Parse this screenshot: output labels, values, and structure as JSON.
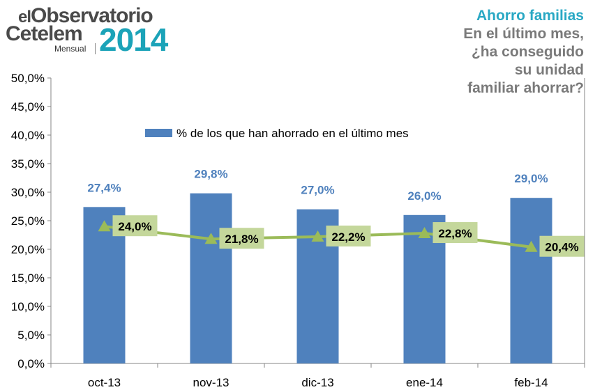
{
  "logo": {
    "line1_prefix": "el",
    "line1_word": "Observatorio",
    "line2": "Cetelem",
    "subtitle": "Mensual",
    "year": "2014"
  },
  "header": {
    "title": "Ahorro familias",
    "question_lines": [
      "En el último mes,",
      "¿ha conseguido",
      "su unidad",
      "familiar ahorrar?"
    ]
  },
  "chart_data": {
    "type": "bar",
    "categories": [
      "oct-13",
      "nov-13",
      "dic-13",
      "ene-14",
      "feb-14"
    ],
    "series": [
      {
        "name": "% de los que han ahorrado en el último mes",
        "type": "bar",
        "values": [
          27.4,
          29.8,
          27.0,
          26.0,
          29.0
        ],
        "labels": [
          "27,4%",
          "29,8%",
          "27,0%",
          "26,0%",
          "29,0%"
        ],
        "color": "#4f81bd"
      },
      {
        "type": "line",
        "values": [
          24.0,
          21.8,
          22.2,
          22.8,
          20.4
        ],
        "labels": [
          "24,0%",
          "21,8%",
          "22,2%",
          "22,8%",
          "20,4%"
        ],
        "color": "#9bbb59"
      }
    ],
    "yticks": [
      "0,0%",
      "5,0%",
      "10,0%",
      "15,0%",
      "20,0%",
      "25,0%",
      "30,0%",
      "35,0%",
      "40,0%",
      "45,0%",
      "50,0%"
    ],
    "ylim": [
      0,
      50
    ],
    "legend_position": "top-center",
    "grid": false,
    "colors": {
      "bar_label": "#4f81bd",
      "line_label_bg": "#c4d79b"
    }
  }
}
